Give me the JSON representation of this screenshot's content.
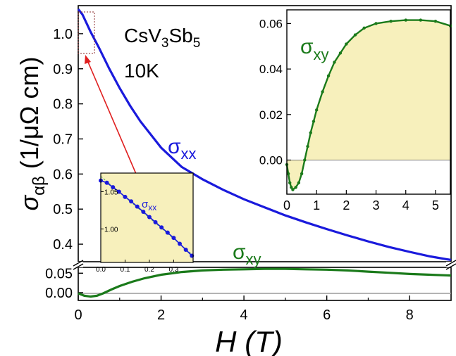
{
  "chart_data": {
    "type": "line",
    "xlabel": "H (T)",
    "xlabel_parts": {
      "var": "H",
      "unit": "(T)"
    },
    "ylabel_parts": {
      "sym": "σ",
      "sub": "αβ",
      "unit": "(1/μΩ cm)"
    },
    "xlim": [
      0,
      9
    ],
    "x_ticks": [
      "0",
      "2",
      "4",
      "6",
      "8"
    ],
    "upper_ylim": [
      0.35,
      1.08
    ],
    "upper_y_ticks": [
      "0.4",
      "0.5",
      "0.6",
      "0.7",
      "0.8",
      "0.9",
      "1.0"
    ],
    "lower_ylim": [
      -0.02,
      0.065
    ],
    "lower_y_ticks": [
      "0.00",
      "0.05"
    ],
    "axis_break": true,
    "annotations": {
      "compound": "CsV",
      "compound_sub1": "3",
      "compound_mid": "Sb",
      "compound_sub2": "5",
      "temperature": "10K"
    },
    "series": [
      {
        "name": "σxx",
        "label_sym": "σ",
        "label_sub": "xx",
        "color": "#1a1adc",
        "panel": "upper",
        "x": [
          0,
          0.1,
          0.2,
          0.3,
          0.5,
          0.75,
          1.0,
          1.25,
          1.5,
          2.0,
          2.5,
          3.0,
          3.5,
          4.0,
          4.5,
          5.0,
          5.5,
          6.0,
          6.5,
          7.0,
          7.5,
          8.0,
          8.5,
          9.0
        ],
        "y": [
          1.07,
          1.055,
          1.03,
          1.005,
          0.96,
          0.9,
          0.845,
          0.795,
          0.75,
          0.675,
          0.62,
          0.585,
          0.555,
          0.528,
          0.505,
          0.482,
          0.462,
          0.443,
          0.425,
          0.408,
          0.392,
          0.378,
          0.365,
          0.355
        ]
      },
      {
        "name": "σxy",
        "label_sym": "σ",
        "label_sub": "xy",
        "color": "#1a7a1a",
        "panel": "lower",
        "x": [
          0,
          0.15,
          0.3,
          0.45,
          0.6,
          0.8,
          1.0,
          1.3,
          1.6,
          2.0,
          2.5,
          3.0,
          3.5,
          4.0,
          4.5,
          5.0,
          5.5,
          6.0,
          6.5,
          7.0,
          7.5,
          8.0,
          8.5,
          9.0
        ],
        "y": [
          -0.002,
          -0.008,
          -0.01,
          -0.008,
          -0.002,
          0.008,
          0.017,
          0.028,
          0.037,
          0.046,
          0.053,
          0.057,
          0.059,
          0.06,
          0.061,
          0.061,
          0.06,
          0.059,
          0.057,
          0.054,
          0.051,
          0.048,
          0.046,
          0.044
        ]
      }
    ],
    "inset_right": {
      "label_sym": "σ",
      "label_sub": "xy",
      "xlim": [
        0,
        5.5
      ],
      "ylim": [
        -0.015,
        0.066
      ],
      "x_ticks": [
        "0",
        "1",
        "2",
        "3",
        "4",
        "5"
      ],
      "y_ticks": [
        "0.00",
        "0.02",
        "0.04",
        "0.06"
      ],
      "fill_color": "#f7f0bc",
      "line_color": "#1a7a1a",
      "x": [
        0,
        0.05,
        0.1,
        0.15,
        0.2,
        0.3,
        0.4,
        0.5,
        0.6,
        0.7,
        0.8,
        0.9,
        1.0,
        1.2,
        1.4,
        1.6,
        1.8,
        2.0,
        2.3,
        2.6,
        3.0,
        3.5,
        4.0,
        4.5,
        5.0,
        5.5
      ],
      "y": [
        -0.002,
        -0.006,
        -0.01,
        -0.012,
        -0.013,
        -0.012,
        -0.01,
        -0.006,
        0.0,
        0.006,
        0.012,
        0.017,
        0.022,
        0.03,
        0.037,
        0.043,
        0.047,
        0.051,
        0.055,
        0.058,
        0.06,
        0.061,
        0.0615,
        0.0615,
        0.061,
        0.059
      ]
    },
    "inset_left": {
      "label_sym": "σ",
      "label_sub": "xx",
      "xlim": [
        0,
        0.38
      ],
      "ylim": [
        0.955,
        1.075
      ],
      "x_ticks": [
        "0.0",
        "0.1",
        "0.2",
        "0.3"
      ],
      "y_ticks": [
        "1.00",
        "1.05"
      ],
      "fill_color": "#f7f0bc",
      "line_color": "#1a1adc",
      "x": [
        0.0,
        0.025,
        0.05,
        0.075,
        0.1,
        0.125,
        0.15,
        0.175,
        0.2,
        0.225,
        0.25,
        0.275,
        0.3,
        0.325,
        0.35,
        0.375
      ],
      "y": [
        1.065,
        1.062,
        1.056,
        1.05,
        1.043,
        1.037,
        1.03,
        1.023,
        1.016,
        1.009,
        1.002,
        0.995,
        0.988,
        0.98,
        0.972,
        0.964
      ]
    }
  }
}
